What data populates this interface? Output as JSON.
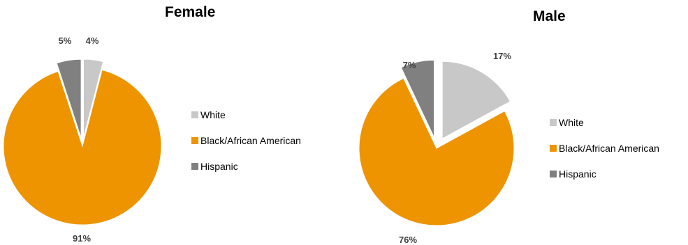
{
  "colors": {
    "white": "#c8c8c8",
    "black": "#ed9400",
    "hispanic": "#808080"
  },
  "chart_data": [
    {
      "type": "pie",
      "title": "Female",
      "slices": [
        {
          "label": "White",
          "value": 4,
          "display": "4%",
          "color": "#c8c8c8",
          "exploded": true
        },
        {
          "label": "Black/African American",
          "value": 91,
          "display": "91%",
          "color": "#ed9400",
          "exploded": false
        },
        {
          "label": "Hispanic",
          "value": 5,
          "display": "5%",
          "color": "#808080",
          "exploded": true
        }
      ],
      "legend": [
        "White",
        "Black/African American",
        "Hispanic"
      ],
      "legend_position": "right"
    },
    {
      "type": "pie",
      "title": "Male",
      "slices": [
        {
          "label": "White",
          "value": 17,
          "display": "17%",
          "color": "#c8c8c8",
          "exploded": true
        },
        {
          "label": "Black/African American",
          "value": 76,
          "display": "76%",
          "color": "#ed9400",
          "exploded": false
        },
        {
          "label": "Hispanic",
          "value": 7,
          "display": "7%",
          "color": "#808080",
          "exploded": true
        }
      ],
      "legend": [
        "White",
        "Black/African American",
        "Hispanic"
      ],
      "legend_position": "right"
    }
  ]
}
